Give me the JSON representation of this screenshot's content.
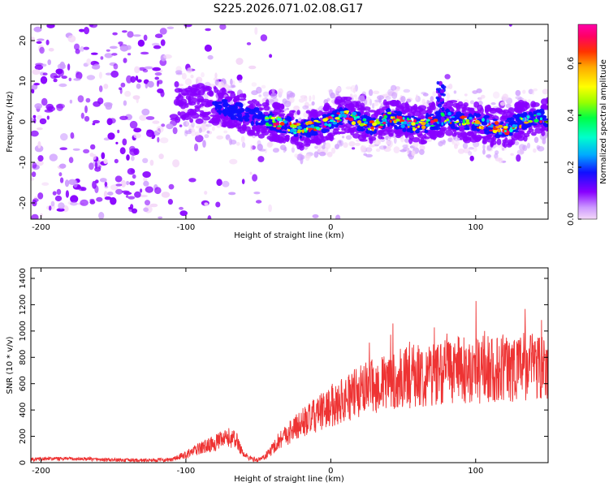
{
  "figure_title": "S225.2026.071.02.08.G17",
  "chart_data": [
    {
      "type": "heatmap",
      "title": "S225.2026.071.02.08.G17",
      "xlabel": "Height of straight line (km)",
      "ylabel": "Frequency (Hz)",
      "xlim": [
        -207,
        150
      ],
      "ylim": [
        -24,
        24
      ],
      "xticks": [
        -200,
        -100,
        0,
        100
      ],
      "yticks": [
        -20,
        -10,
        0,
        10,
        20
      ],
      "grid": false,
      "colorbar": {
        "label": "Normalized spectral amplitude",
        "range": [
          0,
          0.75
        ],
        "ticks": [
          "0.0",
          "0.2",
          "0.4",
          "0.6"
        ],
        "colors": [
          "#f4d8f8",
          "#cc99ff",
          "#8800ff",
          "#1010ff",
          "#00aaff",
          "#00ffcc",
          "#00ff44",
          "#99ff00",
          "#ffff00",
          "#ffaa00",
          "#ff3300",
          "#ff0066",
          "#ff00aa"
        ]
      },
      "description_series": [
        {
          "name": "signal ridge center (Hz)",
          "x": [
            -100,
            -80,
            -60,
            -40,
            -20,
            0,
            10,
            20,
            30,
            40,
            50,
            60,
            70,
            80,
            90,
            100,
            110,
            120,
            130,
            145
          ],
          "values": [
            5,
            4,
            2,
            0,
            -2,
            0,
            2,
            0,
            -1,
            1,
            0,
            -1,
            0,
            1,
            0,
            0,
            -1,
            -2,
            0,
            1
          ]
        },
        {
          "name": "spike near x=76 (Hz)",
          "x": [
            76
          ],
          "values": [
            10
          ]
        }
      ]
    },
    {
      "type": "line",
      "xlabel": "Height of straight line (km)",
      "ylabel": "SNR (10 * v/v)",
      "xlim": [
        -207,
        150
      ],
      "ylim": [
        0,
        1480
      ],
      "xticks": [
        -200,
        -100,
        0,
        100
      ],
      "yticks": [
        0,
        200,
        400,
        600,
        800,
        1000,
        1200,
        1400
      ],
      "grid": false,
      "color": "#ee3333",
      "series": [
        {
          "name": "SNR envelope",
          "x": [
            -207,
            -190,
            -170,
            -150,
            -130,
            -110,
            -100,
            -90,
            -80,
            -70,
            -65,
            -60,
            -55,
            -50,
            -45,
            -40,
            -35,
            -30,
            -25,
            -20,
            -10,
            0,
            10,
            20,
            30,
            40,
            50,
            60,
            70,
            80,
            90,
            100,
            110,
            120,
            130,
            140,
            150
          ],
          "values": [
            25,
            30,
            28,
            20,
            18,
            22,
            60,
            110,
            150,
            190,
            170,
            60,
            30,
            20,
            50,
            110,
            180,
            220,
            260,
            300,
            360,
            430,
            490,
            540,
            580,
            610,
            640,
            660,
            680,
            700,
            700,
            690,
            710,
            720,
            730,
            740,
            760
          ]
        }
      ]
    }
  ]
}
